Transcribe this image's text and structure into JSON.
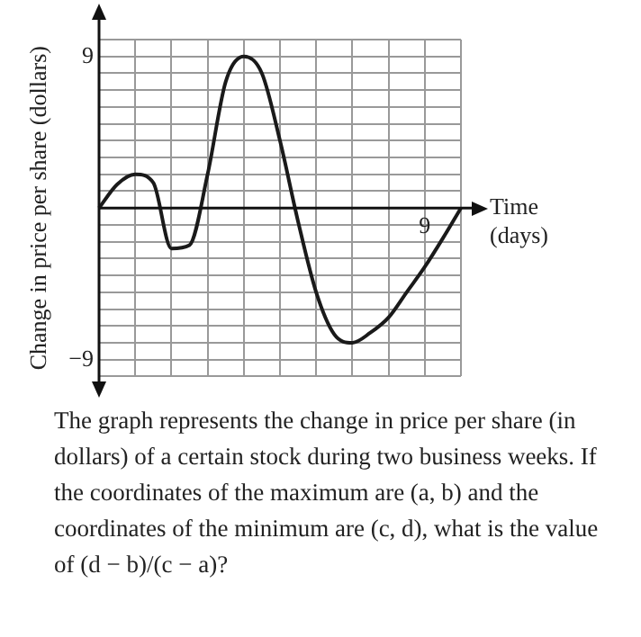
{
  "chart_data": {
    "type": "line",
    "xlabel": "Time (days)",
    "ylabel": "Change in price per share (dollars)",
    "categories": [
      null,
      null,
      null,
      null,
      null,
      null,
      null,
      null,
      null,
      null,
      null,
      null,
      null,
      null,
      null,
      null,
      null,
      null,
      "9",
      null,
      null
    ],
    "series": [
      {
        "color": "#1a1a1a",
        "values": [
          0,
          1.4,
          2,
          1.5,
          -2.4,
          -2.2,
          2,
          7.5,
          9,
          8,
          4,
          -0.8,
          -5,
          -7.5,
          -8,
          -7.4,
          -6.5,
          -5,
          -3.5,
          -1.8,
          0
        ]
      }
    ],
    "ylim": [
      -10,
      10
    ],
    "yticks": [
      {
        "value": -10,
        "label": null
      },
      {
        "value": -9,
        "label": "−9"
      },
      {
        "value": -8,
        "label": null
      },
      {
        "value": -7,
        "label": null
      },
      {
        "value": -6,
        "label": null
      },
      {
        "value": -5,
        "label": null
      },
      {
        "value": -4,
        "label": null
      },
      {
        "value": -3,
        "label": null
      },
      {
        "value": -2,
        "label": null
      },
      {
        "value": -1,
        "label": null
      },
      {
        "value": 0,
        "label": null
      },
      {
        "value": 1,
        "label": null
      },
      {
        "value": 2,
        "label": null
      },
      {
        "value": 3,
        "label": null
      },
      {
        "value": 4,
        "label": null
      },
      {
        "value": 5,
        "label": null
      },
      {
        "value": 6,
        "label": null
      },
      {
        "value": 7,
        "label": null
      },
      {
        "value": 8,
        "label": null
      },
      9,
      {
        "value": 10,
        "label": null
      }
    ],
    "grid": true,
    "legend": false,
    "marker": "none",
    "line_style": "solid",
    "annotations": [
      "The graph represents the change in price per share (in dollars) of a certain stock during two business weeks. If the coordinates of the maximum are (a, b) and the coordinates of the minimum are (c, d), what is the value of (d − b)/(c − a)?"
    ]
  }
}
